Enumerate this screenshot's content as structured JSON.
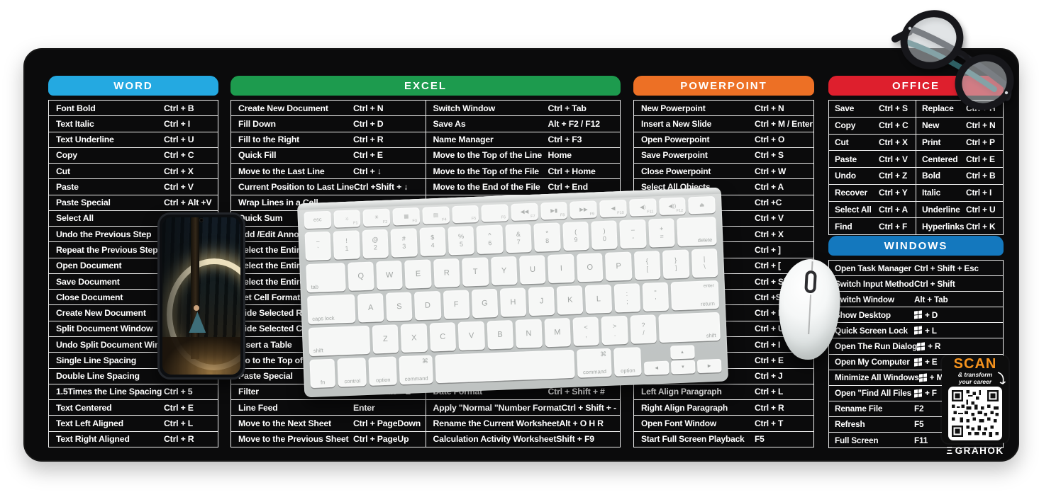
{
  "product": {
    "type": "keyboard-shortcut desk mat photo",
    "mat_color": "#0b0b0c",
    "keyboard_color": "#c9cccb",
    "mouse_color": "#ffffff"
  },
  "panels": {
    "word": {
      "title": "WORD",
      "color": "#24a9e1",
      "rows": [
        {
          "label": "Font Bold",
          "shortcut": "Ctrl + B"
        },
        {
          "label": "Text Italic",
          "shortcut": "Ctrl + I"
        },
        {
          "label": "Text Underline",
          "shortcut": "Ctrl + U"
        },
        {
          "label": "Copy",
          "shortcut": "Ctrl + C"
        },
        {
          "label": "Cut",
          "shortcut": "Ctrl + X"
        },
        {
          "label": "Paste",
          "shortcut": "Ctrl + V"
        },
        {
          "label": "Paste Special",
          "shortcut": "Ctrl + Alt +V"
        },
        {
          "label": "Select All",
          "shortcut": ""
        },
        {
          "label": "Undo the Previous Step",
          "shortcut": ""
        },
        {
          "label": "Repeat the Previous Step",
          "shortcut": ""
        },
        {
          "label": "Open Document",
          "shortcut": ""
        },
        {
          "label": "Save Document",
          "shortcut": ""
        },
        {
          "label": "Close Document",
          "shortcut": ""
        },
        {
          "label": "Create New Document",
          "shortcut": ""
        },
        {
          "label": "Split Document Window",
          "shortcut": ""
        },
        {
          "label": "Undo Split Document Window",
          "shortcut": ""
        },
        {
          "label": "Single Line Spacing",
          "shortcut": ""
        },
        {
          "label": "Double Line Spacing",
          "shortcut": ""
        },
        {
          "label": "1.5Times the Line Spacing",
          "shortcut": "Ctrl + 5"
        },
        {
          "label": "Text Centered",
          "shortcut": "Ctrl + E"
        },
        {
          "label": "Text Left Aligned",
          "shortcut": "Ctrl + L"
        },
        {
          "label": "Text Right Aligned",
          "shortcut": "Ctrl + R"
        }
      ]
    },
    "excel": {
      "title": "EXCEL",
      "color": "#1d9b4e",
      "left_rows": [
        {
          "label": "Create New Document",
          "shortcut": "Ctrl + N"
        },
        {
          "label": "Fill Down",
          "shortcut": "Ctrl + D"
        },
        {
          "label": "Fill to the Right",
          "shortcut": "Ctrl + R"
        },
        {
          "label": "Quick Fill",
          "shortcut": "Ctrl + E"
        },
        {
          "label": "Move to the Last Line",
          "shortcut": "Ctrl + ↓"
        },
        {
          "label": "Current Position to Last Line",
          "shortcut": "Ctrl +Shift + ↓"
        },
        {
          "label": "Wrap Lines in a Cell",
          "shortcut": ""
        },
        {
          "label": "Quick Sum",
          "shortcut": ""
        },
        {
          "label": "Add /Edit Annotation",
          "shortcut": ""
        },
        {
          "label": "Select the Entire Row",
          "shortcut": ""
        },
        {
          "label": "Select the Entire Column",
          "shortcut": ""
        },
        {
          "label": "Select the Entire Worksheet",
          "shortcut": ""
        },
        {
          "label": "Set Cell Format",
          "shortcut": ""
        },
        {
          "label": "Hide Selected Rows",
          "shortcut": ""
        },
        {
          "label": "Hide Selected Columns",
          "shortcut": ""
        },
        {
          "label": "Insert a Table",
          "shortcut": ""
        },
        {
          "label": "Go to the Top of the Table",
          "shortcut": ""
        },
        {
          "label": "Paste Special",
          "shortcut": ""
        },
        {
          "label": "Filter",
          "shortcut": "Ctrl + Shift + L"
        },
        {
          "label": "Line Feed",
          "shortcut": "Enter"
        },
        {
          "label": "Move to the Next Sheet",
          "shortcut": "Ctrl + PageDown"
        },
        {
          "label": "Move to the Previous Sheet",
          "shortcut": "Ctrl + PageUp"
        }
      ],
      "right_rows": [
        {
          "label": "Switch Window",
          "shortcut": "Ctrl + Tab"
        },
        {
          "label": "Save As",
          "shortcut": "Alt + F2 / F12"
        },
        {
          "label": "Name Manager",
          "shortcut": "Ctrl + F3"
        },
        {
          "label": "Move to the Top of the Line",
          "shortcut": "Home"
        },
        {
          "label": "Move to the Top of the File",
          "shortcut": "Ctrl + Home"
        },
        {
          "label": "Move to the End of the File",
          "shortcut": "Ctrl + End"
        },
        {
          "label": "",
          "shortcut": ""
        },
        {
          "label": "",
          "shortcut": ""
        },
        {
          "label": "",
          "shortcut": ""
        },
        {
          "label": "",
          "shortcut": ""
        },
        {
          "label": "",
          "shortcut": ""
        },
        {
          "label": "",
          "shortcut": ""
        },
        {
          "label": "",
          "shortcut": ""
        },
        {
          "label": "",
          "shortcut": ""
        },
        {
          "label": "",
          "shortcut": ""
        },
        {
          "label": "",
          "shortcut": ""
        },
        {
          "label": "",
          "shortcut": ""
        },
        {
          "label": "",
          "shortcut": ""
        },
        {
          "label": "Date Format",
          "shortcut": "Ctrl + Shift + #"
        },
        {
          "label": "Apply \"Normal \"Number Format",
          "shortcut": "Ctrl + Shift + -"
        },
        {
          "label": "Rename the Current Worksheet",
          "shortcut": "Alt + O H R"
        },
        {
          "label": "Calculation Activity Worksheet",
          "shortcut": "Shift + F9"
        }
      ]
    },
    "powerpoint": {
      "title": "POWERPOINT",
      "color": "#ed7025",
      "rows": [
        {
          "label": "New Powerpoint",
          "shortcut": "Ctrl + N"
        },
        {
          "label": "Insert a New Slide",
          "shortcut": "Ctrl + M / Enter"
        },
        {
          "label": "Open Powerpoint",
          "shortcut": "Ctrl + O"
        },
        {
          "label": "Save Powerpoint",
          "shortcut": "Ctrl + S"
        },
        {
          "label": "Close Powerpoint",
          "shortcut": "Ctrl + W"
        },
        {
          "label": "Select All Objects",
          "shortcut": "Ctrl + A"
        },
        {
          "label": "",
          "shortcut": "Ctrl  +C"
        },
        {
          "label": "",
          "shortcut": "Ctrl + V"
        },
        {
          "label": "",
          "shortcut": "Ctrl + X"
        },
        {
          "label": "",
          "shortcut": "Ctrl + ]"
        },
        {
          "label": "",
          "shortcut": "Ctrl + ["
        },
        {
          "label": "",
          "shortcut": "Ctrl + Shift"
        },
        {
          "label": "",
          "shortcut": "Ctrl +Shift"
        },
        {
          "label": "",
          "shortcut": "Ctrl + B"
        },
        {
          "label": "",
          "shortcut": "Ctrl + U"
        },
        {
          "label": "",
          "shortcut": "Ctrl + I"
        },
        {
          "label": "",
          "shortcut": "Ctrl + E"
        },
        {
          "label": "",
          "shortcut": "Ctrl + J"
        },
        {
          "label": "Left Align Paragraph",
          "shortcut": "Ctrl + L"
        },
        {
          "label": "Right Align Paragraph",
          "shortcut": "Ctrl + R"
        },
        {
          "label": "Open Font Window",
          "shortcut": "Ctrl + T"
        },
        {
          "label": "Start Full Screen Playback",
          "shortcut": "F5"
        }
      ]
    },
    "office": {
      "title": "OFFICE",
      "color": "#de1f2d",
      "left_rows": [
        {
          "label": "Save",
          "shortcut": "Ctrl + S"
        },
        {
          "label": "Copy",
          "shortcut": "Ctrl + C"
        },
        {
          "label": "Cut",
          "shortcut": "Ctrl + X"
        },
        {
          "label": "Paste",
          "shortcut": "Ctrl + V"
        },
        {
          "label": "Undo",
          "shortcut": "Ctrl + Z"
        },
        {
          "label": "Recover",
          "shortcut": "Ctrl + Y"
        },
        {
          "label": "Select All",
          "shortcut": "Ctrl + A"
        },
        {
          "label": "Find",
          "shortcut": "Ctrl + F"
        }
      ],
      "right_rows": [
        {
          "label": "Replace",
          "shortcut": "Ctrl + H"
        },
        {
          "label": "New",
          "shortcut": "Ctrl + N"
        },
        {
          "label": "Print",
          "shortcut": "Ctrl + P"
        },
        {
          "label": "Centered",
          "shortcut": "Ctrl + E"
        },
        {
          "label": "Bold",
          "shortcut": "Ctrl + B"
        },
        {
          "label": "Italic",
          "shortcut": "Ctrl + I"
        },
        {
          "label": "Underline",
          "shortcut": "Ctrl + U"
        },
        {
          "label": "Hyperlinks",
          "shortcut": "Ctrl + K"
        }
      ]
    },
    "windows": {
      "title": "WINDOWS",
      "color": "#1478be",
      "rows": [
        {
          "label": "Open Task Manager",
          "shortcut": "Ctrl + Shift + Esc"
        },
        {
          "label": "Switch Input Method",
          "shortcut": "Ctrl + Shift"
        },
        {
          "label": "Switch Window",
          "shortcut": "Alt + Tab"
        },
        {
          "label": "Show Desktop",
          "shortcut": "+ D",
          "win": true
        },
        {
          "label": "Quick Screen Lock",
          "shortcut": "+ L",
          "win": true
        },
        {
          "label": "Open The Run Dialog",
          "shortcut": "+ R",
          "win": true
        },
        {
          "label": "Open My Computer",
          "shortcut": "+ E",
          "win": true
        },
        {
          "label": "Minimize All Windows",
          "shortcut": "+ M",
          "win": true
        },
        {
          "label": "Open \"Find All Files",
          "shortcut": "+ F",
          "win": true
        },
        {
          "label": "Rename File",
          "shortcut": "F2"
        },
        {
          "label": "Refresh",
          "shortcut": "F5"
        },
        {
          "label": "Full Screen",
          "shortcut": "F11"
        }
      ]
    }
  },
  "qr_card": {
    "scan": "SCAN",
    "scan_color": "#f7941e",
    "tagline_1": "& transform",
    "tagline_2": "your career",
    "brand": "GRAHOK",
    "brand_icon": "Ξ"
  },
  "keyboard": {
    "arrows": [
      "◀",
      "▲",
      "▼",
      "▶"
    ],
    "rows": [
      [
        {
          "m": "esc",
          "id": "esc"
        },
        {
          "m": "☼",
          "s": "F1"
        },
        {
          "m": "☀",
          "s": "F2"
        },
        {
          "m": "▦",
          "s": "F3"
        },
        {
          "m": "▤",
          "s": "F4"
        },
        {
          "m": "",
          "s": "F5"
        },
        {
          "m": "",
          "s": "F6"
        },
        {
          "m": "◀◀",
          "s": "F7"
        },
        {
          "m": "▶▮",
          "s": "F8"
        },
        {
          "m": "▶▶",
          "s": "F9"
        },
        {
          "m": "◀",
          "s": "F10"
        },
        {
          "m": "◀)",
          "s": "F11"
        },
        {
          "m": "◀))",
          "s": "F12"
        },
        {
          "m": "⏏",
          "id": "eject"
        }
      ],
      [
        {
          "m": "~",
          "s": "`"
        },
        {
          "m": "!",
          "s": "1"
        },
        {
          "m": "@",
          "s": "2"
        },
        {
          "m": "#",
          "s": "3"
        },
        {
          "m": "$",
          "s": "4"
        },
        {
          "m": "%",
          "s": "5"
        },
        {
          "m": "^",
          "s": "6"
        },
        {
          "m": "&",
          "s": "7"
        },
        {
          "m": "*",
          "s": "8"
        },
        {
          "m": "(",
          "s": "9"
        },
        {
          "m": ")",
          "s": "0"
        },
        {
          "m": "–",
          "s": "-"
        },
        {
          "m": "+",
          "s": "="
        },
        {
          "m": "delete",
          "id": "delete",
          "cls": "mod br",
          "w": 1.5
        }
      ],
      [
        {
          "m": "tab",
          "id": "tab",
          "cls": "mod bl",
          "w": 1.5
        },
        {
          "m": "Q"
        },
        {
          "m": "W"
        },
        {
          "m": "E"
        },
        {
          "m": "R"
        },
        {
          "m": "T"
        },
        {
          "m": "Y"
        },
        {
          "m": "U"
        },
        {
          "m": "I"
        },
        {
          "m": "O"
        },
        {
          "m": "P"
        },
        {
          "m": "{",
          "s": "["
        },
        {
          "m": "}",
          "s": "]"
        },
        {
          "m": "|",
          "s": "\\"
        }
      ],
      [
        {
          "m": "caps lock",
          "id": "caps-lock",
          "cls": "mod bl",
          "w": 1.85
        },
        {
          "m": "A"
        },
        {
          "m": "S"
        },
        {
          "m": "D"
        },
        {
          "m": "F"
        },
        {
          "m": "G"
        },
        {
          "m": "H"
        },
        {
          "m": "J"
        },
        {
          "m": "K"
        },
        {
          "m": "L"
        },
        {
          "m": ":",
          "s": ";"
        },
        {
          "m": "\"",
          "s": "'"
        },
        {
          "m": "enter",
          "s": "return",
          "id": "return",
          "cls": "mod ret",
          "w": 1.85
        }
      ],
      [
        {
          "m": "shift",
          "id": "shift-left",
          "cls": "mod bl",
          "w": 2.35
        },
        {
          "m": "Z"
        },
        {
          "m": "X"
        },
        {
          "m": "C"
        },
        {
          "m": "V"
        },
        {
          "m": "B"
        },
        {
          "m": "N"
        },
        {
          "m": "M"
        },
        {
          "m": "<",
          "s": ","
        },
        {
          "m": ">",
          "s": "."
        },
        {
          "m": "?",
          "s": "/"
        },
        {
          "m": "shift",
          "id": "shift-right",
          "cls": "mod br",
          "w": 2.35
        }
      ],
      [
        {
          "m": "fn",
          "id": "fn",
          "cls": "mod bc"
        },
        {
          "m": "control",
          "id": "control",
          "cls": "mod bc",
          "w": 1.15
        },
        {
          "m": "option",
          "id": "option-left",
          "cls": "mod bc",
          "w": 1.1
        },
        {
          "m": "command",
          "s": "⌘",
          "id": "command-left",
          "cls": "mod bc cmd",
          "w": 1.35
        },
        {
          "m": "",
          "id": "space",
          "w": 5.6
        },
        {
          "m": "command",
          "s": "⌘",
          "id": "command-right",
          "cls": "mod bc cmd",
          "w": 1.35
        },
        {
          "m": "option",
          "id": "option-right",
          "cls": "mod bc",
          "w": 1.1
        },
        {
          "cluster": true,
          "w": 3.1
        }
      ]
    ]
  }
}
